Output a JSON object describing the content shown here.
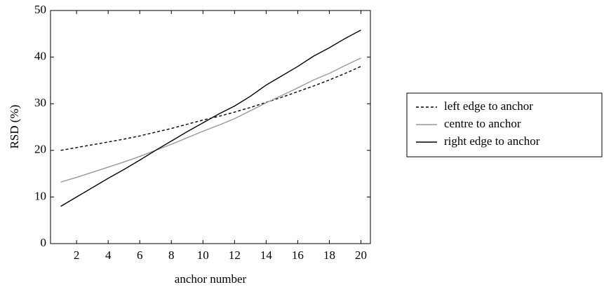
{
  "chart_data": {
    "type": "line",
    "xlabel": "anchor number",
    "ylabel": "RSD (%)",
    "x": [
      1,
      2,
      3,
      4,
      5,
      6,
      7,
      8,
      9,
      10,
      11,
      12,
      13,
      14,
      15,
      16,
      17,
      18,
      19,
      20
    ],
    "series": [
      {
        "name": "left edge to anchor",
        "color": "#000000",
        "linestyle": "dashed",
        "values": [
          20,
          20.6,
          21.2,
          21.8,
          22.4,
          23.1,
          23.9,
          24.7,
          25.6,
          26.5,
          27.3,
          28.2,
          29.2,
          30.3,
          31.4,
          32.6,
          33.8,
          35.1,
          36.5,
          38
        ]
      },
      {
        "name": "centre to anchor",
        "color": "#999999",
        "linestyle": "solid",
        "values": [
          13.2,
          14.2,
          15.3,
          16.4,
          17.5,
          18.7,
          20,
          21.3,
          22.7,
          24.1,
          25.4,
          26.8,
          28.5,
          30.2,
          31.8,
          33.4,
          35.1,
          36.5,
          38.2,
          39.8
        ]
      },
      {
        "name": "right edge to anchor",
        "color": "#000000",
        "linestyle": "solid",
        "values": [
          8,
          10,
          12,
          14,
          15.9,
          17.9,
          20,
          22,
          24,
          25.9,
          27.8,
          29.5,
          31.6,
          34,
          36,
          38,
          40.2,
          42,
          44,
          45.8
        ]
      }
    ],
    "xlim": [
      0.35,
      20.6
    ],
    "ylim": [
      0,
      50
    ],
    "xticks": [
      2,
      4,
      6,
      8,
      10,
      12,
      14,
      16,
      18,
      20
    ],
    "yticks": [
      0,
      10,
      20,
      30,
      40,
      50
    ],
    "legend": "right"
  }
}
